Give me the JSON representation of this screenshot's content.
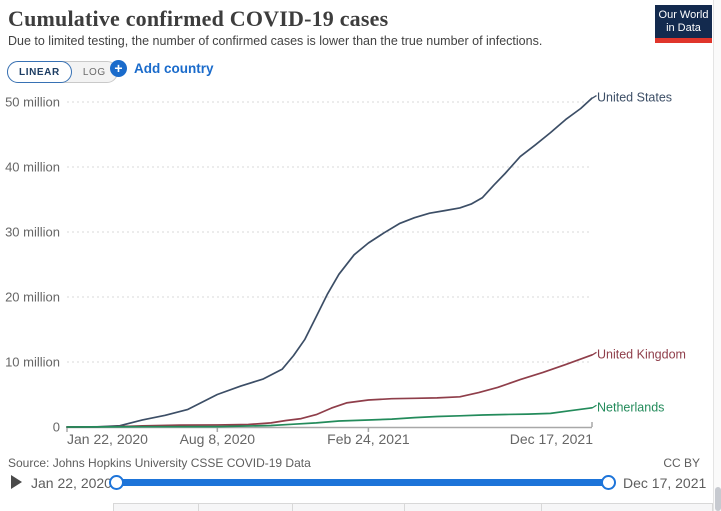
{
  "header": {
    "title": "Cumulative confirmed COVID-19 cases",
    "subtitle": "Due to limited testing, the number of confirmed cases is lower than the true number of infections.",
    "logo": {
      "line1": "Our World",
      "line2": "in Data",
      "bg_color": "#132A4E",
      "accent_color": "#E0352B"
    }
  },
  "controls": {
    "scale_toggle": {
      "options": [
        "LINEAR",
        "LOG"
      ],
      "selected": "LINEAR"
    },
    "add_country_label": "Add country",
    "accent_blue": "#1A6BCB"
  },
  "chart_data": {
    "type": "line",
    "title": "Cumulative confirmed COVID-19 cases",
    "xlabel": "",
    "ylabel": "",
    "grid": "dotted horizontal gridlines",
    "legend_position": "right-edge labels",
    "x_range_days": [
      0,
      695
    ],
    "x_tick_days": [
      0,
      199,
      399,
      695
    ],
    "x_tick_labels": [
      "Jan 22, 2020",
      "Aug 8, 2020",
      "Feb 24, 2021",
      "Dec 17, 2021"
    ],
    "ylim_millions": [
      0,
      50
    ],
    "y_ticks": [
      0,
      10,
      20,
      30,
      40,
      50
    ],
    "y_tick_labels": [
      "0",
      "10 million",
      "20 million",
      "30 million",
      "40 million",
      "50 million"
    ],
    "series": [
      {
        "name": "United States",
        "color": "#3C4E66",
        "points_days": [
          0,
          40,
          70,
          100,
          130,
          160,
          199,
          230,
          260,
          285,
          300,
          315,
          330,
          345,
          360,
          380,
          399,
          420,
          440,
          460,
          480,
          500,
          520,
          535,
          550,
          565,
          580,
          600,
          620,
          640,
          660,
          680,
          695
        ],
        "values_millions": [
          0,
          0.01,
          0.2,
          1.1,
          1.8,
          2.7,
          5.0,
          6.3,
          7.4,
          8.9,
          11.0,
          13.5,
          17.0,
          20.5,
          23.5,
          26.5,
          28.3,
          29.9,
          31.3,
          32.2,
          32.9,
          33.3,
          33.7,
          34.3,
          35.3,
          37.2,
          39.0,
          41.6,
          43.4,
          45.3,
          47.3,
          49.0,
          50.6
        ]
      },
      {
        "name": "United Kingdom",
        "color": "#8F3E4A",
        "points_days": [
          0,
          60,
          100,
          150,
          199,
          240,
          270,
          290,
          310,
          330,
          350,
          370,
          399,
          430,
          460,
          490,
          520,
          545,
          570,
          600,
          630,
          660,
          695
        ],
        "values_millions": [
          0,
          0.04,
          0.17,
          0.29,
          0.31,
          0.39,
          0.63,
          1.0,
          1.3,
          1.9,
          2.9,
          3.7,
          4.15,
          4.35,
          4.42,
          4.47,
          4.65,
          5.3,
          6.1,
          7.3,
          8.4,
          9.6,
          11.1
        ]
      },
      {
        "name": "Netherlands",
        "color": "#238B5B",
        "points_days": [
          0,
          100,
          199,
          270,
          300,
          330,
          360,
          399,
          430,
          460,
          490,
          520,
          550,
          580,
          610,
          640,
          665,
          695
        ],
        "values_millions": [
          0,
          0.04,
          0.06,
          0.23,
          0.43,
          0.63,
          0.92,
          1.07,
          1.22,
          1.44,
          1.62,
          1.72,
          1.84,
          1.93,
          1.99,
          2.1,
          2.5,
          2.96
        ]
      }
    ]
  },
  "footer": {
    "source": "Source: Johns Hopkins University CSSE COVID-19 Data",
    "license": "CC BY"
  },
  "timeline": {
    "start_label": "Jan 22, 2020",
    "end_label": "Dec 17, 2021"
  }
}
